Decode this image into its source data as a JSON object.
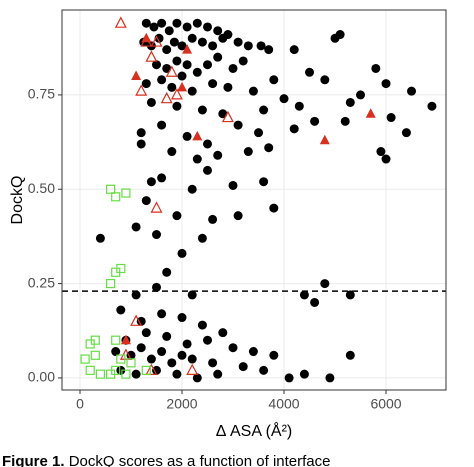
{
  "chart_data": {
    "type": "scatter",
    "x_label": "Δ ASA (Å²)",
    "y_label": "DockQ",
    "xlim": [
      -353,
      7176
    ],
    "ylim": [
      -0.032,
      0.975
    ],
    "xticks": [
      0,
      2000,
      4000,
      6000
    ],
    "yticks": [
      {
        "value": 0,
        "label": "0.00"
      },
      {
        "value": 0.25,
        "label": "0.25"
      },
      {
        "value": 0.5,
        "label": "0.50"
      },
      {
        "value": 0.75,
        "label": "0.75"
      }
    ],
    "grid": true,
    "hline": 0.23,
    "series": [
      {
        "color": "#000000",
        "marker": "circle",
        "x": [
          1300,
          1450,
          1600,
          1750,
          1900,
          2100,
          2300,
          2500,
          2700,
          2900,
          1250,
          1400,
          1550,
          1700,
          1850,
          2000,
          2200,
          2400,
          2600,
          2800,
          3100,
          3300,
          3550,
          3700,
          4200,
          5000,
          5100,
          1500,
          1700,
          1900,
          2100,
          2300,
          2500,
          2700,
          3000,
          3200,
          1300,
          1600,
          1800,
          2000,
          2200,
          2600,
          2900,
          3400,
          3800,
          4500,
          4800,
          5800,
          6000,
          6500,
          6900,
          5300,
          5500,
          4300,
          4000,
          3600,
          1400,
          1900,
          2400,
          2800,
          3100,
          3500,
          4200,
          4600,
          5200,
          6100,
          6400,
          1200,
          1600,
          2100,
          2500,
          3300,
          3700,
          5900,
          6000,
          1200,
          1800,
          2300,
          2700,
          1400,
          1600,
          2200,
          2500,
          3000,
          3600,
          3800,
          1300,
          1900,
          2600,
          3100,
          1100,
          1500,
          2400,
          2000,
          1700,
          400,
          1100,
          1500,
          2200,
          4400,
          4600,
          5300,
          4800,
          800,
          1200,
          1600,
          2000,
          2400,
          2800,
          900,
          1300,
          1700,
          2100,
          2500,
          3000,
          3400,
          3800,
          700,
          1000,
          1400,
          1800,
          2200,
          2600,
          3200,
          3600,
          4100,
          5300,
          800,
          1100,
          1500,
          1900,
          2300,
          2700,
          4400,
          4900,
          1200,
          1600,
          2000
        ],
        "y": [
          0.94,
          0.93,
          0.94,
          0.92,
          0.94,
          0.93,
          0.94,
          0.93,
          0.92,
          0.91,
          0.89,
          0.88,
          0.9,
          0.87,
          0.89,
          0.88,
          0.9,
          0.89,
          0.88,
          0.9,
          0.89,
          0.88,
          0.88,
          0.87,
          0.87,
          0.9,
          0.91,
          0.83,
          0.82,
          0.84,
          0.83,
          0.81,
          0.83,
          0.85,
          0.82,
          0.84,
          0.78,
          0.79,
          0.77,
          0.8,
          0.76,
          0.78,
          0.77,
          0.76,
          0.79,
          0.81,
          0.79,
          0.82,
          0.78,
          0.76,
          0.72,
          0.73,
          0.75,
          0.72,
          0.74,
          0.71,
          0.73,
          0.72,
          0.71,
          0.7,
          0.67,
          0.65,
          0.66,
          0.68,
          0.68,
          0.69,
          0.65,
          0.65,
          0.67,
          0.64,
          0.62,
          0.6,
          0.61,
          0.6,
          0.58,
          0.62,
          0.6,
          0.58,
          0.59,
          0.52,
          0.53,
          0.5,
          0.55,
          0.51,
          0.52,
          0.45,
          0.47,
          0.43,
          0.42,
          0.43,
          0.4,
          0.38,
          0.37,
          0.33,
          0.28,
          0.37,
          0.22,
          0.24,
          0.22,
          0.22,
          0.2,
          0.22,
          0.25,
          0.18,
          0.15,
          0.17,
          0.16,
          0.14,
          0.12,
          0.1,
          0.12,
          0.11,
          0.09,
          0.1,
          0.08,
          0.07,
          0.06,
          0.07,
          0.06,
          0.05,
          0.04,
          0.05,
          0.04,
          0.03,
          0.02,
          0.0,
          0.06,
          0.02,
          0.01,
          0.02,
          0.01,
          0.0,
          0.01,
          0.01,
          0.0,
          0.08,
          0.07,
          0.06
        ]
      },
      {
        "color": "#d7301f",
        "marker": "triangle",
        "x": [
          1100,
          2100,
          2300,
          2000,
          4800,
          5700,
          900,
          1300
        ],
        "y": [
          0.8,
          0.87,
          0.64,
          0.77,
          0.63,
          0.7,
          0.1,
          0.9
        ]
      },
      {
        "color": "#d7301f",
        "marker": "triangle-open",
        "x": [
          800,
          1300,
          1500,
          1400,
          1800,
          1200,
          1900,
          2900,
          1500,
          1100,
          2200,
          900,
          1400,
          1700
        ],
        "y": [
          0.94,
          0.89,
          0.89,
          0.85,
          0.81,
          0.76,
          0.75,
          0.69,
          0.45,
          0.15,
          0.02,
          0.06,
          0.02,
          0.74
        ]
      },
      {
        "color": "#66dd44",
        "marker": "square-open",
        "x": [
          600,
          700,
          900,
          800,
          700,
          600,
          300,
          200,
          700,
          100,
          300,
          800,
          200,
          400,
          700,
          900,
          1300,
          1000,
          600
        ],
        "y": [
          0.5,
          0.48,
          0.49,
          0.29,
          0.28,
          0.25,
          0.1,
          0.09,
          0.1,
          0.05,
          0.06,
          0.05,
          0.02,
          0.01,
          0.02,
          0.01,
          0.02,
          0.04,
          0.01
        ]
      }
    ]
  },
  "caption": {
    "label": "Figure 1.",
    "text": "DockQ scores as a function of interface"
  }
}
